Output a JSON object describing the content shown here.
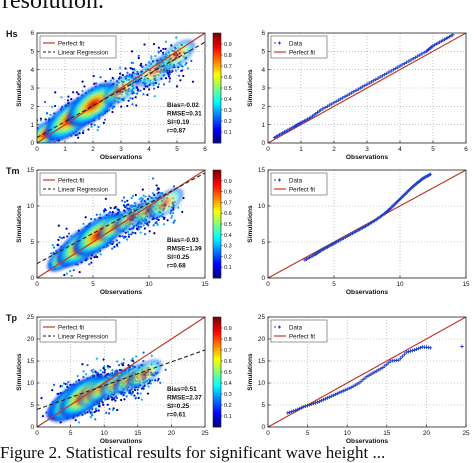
{
  "caption_fragments": {
    "top": "resolution.",
    "bottom": "Figure 2.   Statistical results for significant wave height ..."
  },
  "colorbar": {
    "ticks": [
      "0.9",
      "0.8",
      "0.7",
      "0.6",
      "0.5",
      "0.4",
      "0.3",
      "0.2",
      "0.1"
    ],
    "colors": [
      "#00007f",
      "#0000ff",
      "#007fff",
      "#00ffff",
      "#7fff7f",
      "#ffff00",
      "#ff7f00",
      "#ff0000",
      "#7f0000"
    ]
  },
  "colors": {
    "fit_line": "#c0392b",
    "regression_line": "#222222",
    "qq_marker": "#1f3cc8"
  },
  "chart_data": [
    {
      "type": "scatter",
      "variable": "Hs",
      "panel": "density scatter",
      "xlabel": "Observations",
      "ylabel": "Simulations",
      "xlim": [
        0,
        6
      ],
      "ylim": [
        0,
        6
      ],
      "xticks": [
        "0",
        "1",
        "2",
        "3",
        "4",
        "5",
        "6"
      ],
      "yticks": [
        "0",
        "1",
        "2",
        "3",
        "4",
        "5",
        "6"
      ],
      "legend": [
        "Perfect fit",
        "Linear Regression"
      ],
      "legend_position": "top-left",
      "stats": [
        "Bias=-0.02",
        "RMSE=0.31",
        "SI=0.19",
        "r=0.87"
      ],
      "regression": [
        [
          0,
          0.3
        ],
        [
          6,
          5.5
        ]
      ],
      "cloud": {
        "x": [
          0.3,
          1.2,
          2.0,
          3.0,
          4.2,
          5.0
        ],
        "y": [
          0.5,
          1.3,
          2.1,
          2.9,
          3.9,
          4.8
        ],
        "spread": 0.45
      }
    },
    {
      "type": "scatter",
      "variable": "Hs",
      "panel": "quantile-quantile",
      "xlabel": "Observations",
      "ylabel": "Simulations",
      "xlim": [
        0,
        6
      ],
      "ylim": [
        0,
        6
      ],
      "xticks": [
        "0",
        "1",
        "2",
        "3",
        "4",
        "5",
        "6"
      ],
      "yticks": [
        "0",
        "1",
        "2",
        "3",
        "4",
        "5",
        "6"
      ],
      "legend": [
        "Data",
        "Perfect fit"
      ],
      "legend_position": "top-left",
      "x": [
        0.2,
        0.5,
        0.8,
        1.0,
        1.3,
        1.6,
        2.0,
        2.4,
        2.8,
        3.2,
        3.6,
        4.0,
        4.4,
        4.8,
        5.0,
        5.3,
        5.6
      ],
      "y": [
        0.3,
        0.6,
        0.9,
        1.1,
        1.4,
        1.8,
        2.2,
        2.6,
        3.0,
        3.4,
        3.8,
        4.2,
        4.6,
        5.0,
        5.3,
        5.6,
        5.9
      ]
    },
    {
      "type": "scatter",
      "variable": "Tm",
      "panel": "density scatter",
      "xlabel": "Observations",
      "ylabel": "Simulations",
      "xlim": [
        0,
        15
      ],
      "ylim": [
        0,
        15
      ],
      "xticks": [
        "0",
        "5",
        "10",
        "15"
      ],
      "yticks": [
        "0",
        "5",
        "10",
        "15"
      ],
      "legend": [
        "Perfect fit",
        "Linear Regression"
      ],
      "legend_position": "top-left",
      "stats": [
        "Bias=-0.93",
        "RMSE=1.39",
        "SI=0.25",
        "r=0.68"
      ],
      "regression": [
        [
          0,
          2.0
        ],
        [
          15,
          14.6
        ]
      ],
      "cloud": {
        "x": [
          2.5,
          4.0,
          5.5,
          7.0,
          8.5,
          10.0,
          11.5
        ],
        "y": [
          3.0,
          4.5,
          6.0,
          7.2,
          8.4,
          9.5,
          10.4
        ],
        "spread": 1.1
      }
    },
    {
      "type": "scatter",
      "variable": "Tm",
      "panel": "quantile-quantile",
      "xlabel": "Observations",
      "ylabel": "Simulations",
      "xlim": [
        0,
        15
      ],
      "ylim": [
        0,
        15
      ],
      "xticks": [
        "0",
        "5",
        "10",
        "15"
      ],
      "yticks": [
        "0",
        "5",
        "10",
        "15"
      ],
      "legend": [
        "Data",
        "Perfect fit"
      ],
      "legend_position": "top-left",
      "x": [
        2.8,
        3.5,
        4.0,
        4.6,
        5.2,
        6.0,
        6.8,
        7.5,
        8.2,
        8.8,
        9.3,
        9.8,
        10.3,
        10.8,
        11.3,
        11.8,
        12.3
      ],
      "y": [
        2.5,
        3.2,
        3.8,
        4.4,
        5.0,
        5.8,
        6.6,
        7.3,
        8.1,
        8.9,
        9.7,
        10.6,
        11.5,
        12.4,
        13.2,
        13.9,
        14.4
      ]
    },
    {
      "type": "scatter",
      "variable": "Tp",
      "panel": "density scatter",
      "xlabel": "Observations",
      "ylabel": "Simulations",
      "xlim": [
        0,
        25
      ],
      "ylim": [
        0,
        25
      ],
      "xticks": [
        "0",
        "5",
        "10",
        "15",
        "20",
        "25"
      ],
      "yticks": [
        "0",
        "5",
        "10",
        "15",
        "20",
        "25"
      ],
      "legend": [
        "Perfect fit",
        "Linear Regression"
      ],
      "legend_position": "top-left",
      "stats": [
        "Bias=0.51",
        "RMSE=2.37",
        "SI=0.25",
        "r=0.61"
      ],
      "regression": [
        [
          0,
          4.0
        ],
        [
          25,
          17.5
        ]
      ],
      "cloud": {
        "x": [
          4.0,
          5.5,
          7.0,
          8.5,
          10.0,
          12.0,
          14.0,
          16.0
        ],
        "y": [
          5.0,
          6.0,
          7.0,
          8.0,
          9.0,
          10.0,
          11.0,
          12.0
        ],
        "spread": 1.8
      }
    },
    {
      "type": "scatter",
      "variable": "Tp",
      "panel": "quantile-quantile",
      "xlabel": "Observations",
      "ylabel": "Simulations",
      "xlim": [
        0,
        25
      ],
      "ylim": [
        0,
        25
      ],
      "xticks": [
        "0",
        "5",
        "10",
        "15",
        "20",
        "25"
      ],
      "yticks": [
        "0",
        "5",
        "10",
        "15",
        "20",
        "25"
      ],
      "legend": [
        "Data",
        "Perfect fit"
      ],
      "legend_position": "top-left",
      "x": [
        2.5,
        3.5,
        4.5,
        5.5,
        6.5,
        7.5,
        8.5,
        9.5,
        10.5,
        11.5,
        12.5,
        13.5,
        14.5,
        15.5,
        16.5,
        17.5,
        18.5,
        19.5,
        20.5,
        24.5
      ],
      "y": [
        3.2,
        3.8,
        4.6,
        5.2,
        5.8,
        6.6,
        7.4,
        8.2,
        9.0,
        10.0,
        11.5,
        12.5,
        13.5,
        15.0,
        15.2,
        17.0,
        17.5,
        18.2,
        18.0,
        18.3
      ]
    }
  ]
}
